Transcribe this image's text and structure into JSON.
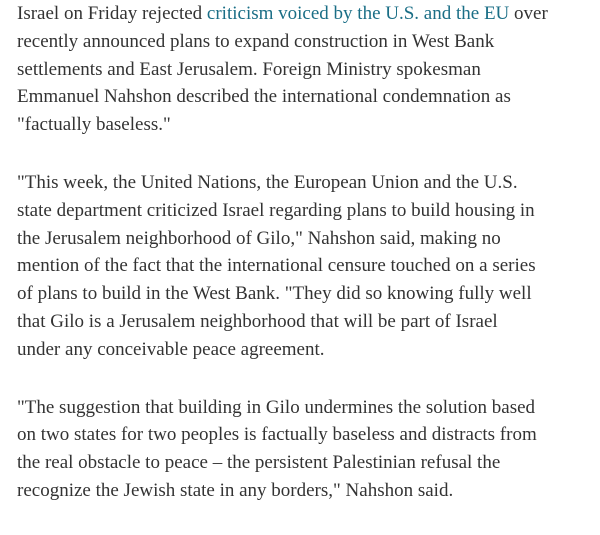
{
  "article": {
    "link_color": "#1a6e86",
    "p1": {
      "first_before": "Israel on Friday rejected ",
      "link": "criticism voiced by the U.S. and the EU",
      "first_after": " over",
      "lines": [
        "recently announced plans to expand construction in West Bank",
        "settlements and East Jerusalem. Foreign Ministry spokesman",
        "Emmanuel Nahshon described the international condemnation as",
        "\"factually baseless.\""
      ]
    },
    "p2": {
      "lines": [
        "\"This week, the United Nations, the European Union and the U.S.",
        "state department criticized Israel regarding plans to build housing in",
        "the Jerusalem neighborhood of Gilo,\" Nahshon said, making no",
        "mention of the fact that the international censure touched on a series",
        "of plans to build in the West Bank. \"They did so knowing fully well",
        "that Gilo is a Jerusalem neighborhood that will be part of Israel",
        "under any conceivable peace agreement."
      ]
    },
    "p3": {
      "lines": [
        "\"The suggestion that building in Gilo undermines the solution based",
        "on two states for two peoples is factually baseless and distracts from",
        "the real obstacle to peace – the persistent Palestinian refusal the",
        "recognize the Jewish state in any borders,\" Nahshon said."
      ]
    }
  }
}
